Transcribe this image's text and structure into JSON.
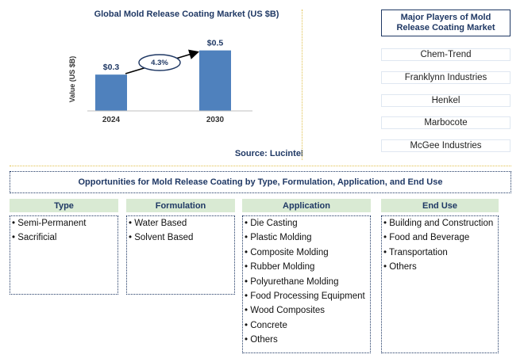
{
  "chart_data": {
    "type": "bar",
    "title": "Global Mold Release Coating Market (US $B)",
    "ylabel": "Value (US $B)",
    "categories": [
      "2024",
      "2030"
    ],
    "values": [
      0.3,
      0.5
    ],
    "data_labels": [
      "$0.3",
      "$0.5"
    ],
    "cagr_label": "4.3%",
    "bar_color": "#4f81bd",
    "ylim": [
      0,
      0.55
    ],
    "grid": false,
    "source": "Source: Lucintel"
  },
  "players": {
    "title": "Major Players of Mold Release Coating Market",
    "items": [
      "Chem-Trend",
      "Franklynn Industries",
      "Henkel",
      "Marbocote",
      "McGee Industries"
    ]
  },
  "opportunities": {
    "title": "Opportunities for Mold Release Coating by Type, Formulation, Application, and End Use",
    "columns": [
      {
        "heading": "Type",
        "items": [
          "• Semi-Permanent",
          "• Sacrificial"
        ]
      },
      {
        "heading": "Formulation",
        "items": [
          "• Water Based",
          "• Solvent Based"
        ]
      },
      {
        "heading": "Application",
        "items": [
          "• Die Casting",
          "• Plastic Molding",
          "• Composite Molding",
          "• Rubber Molding",
          "• Polyurethane Molding",
          "• Food Processing Equipment",
          "• Wood Composites",
          "• Concrete",
          "• Others"
        ]
      },
      {
        "heading": "End Use",
        "items": [
          "• Building and Construction",
          "• Food and Beverage",
          "• Transportation",
          "• Others"
        ]
      }
    ]
  },
  "colors": {
    "accent": "#1f3864",
    "header_fill": "#d9ead3",
    "divider": "#e0c04c"
  }
}
